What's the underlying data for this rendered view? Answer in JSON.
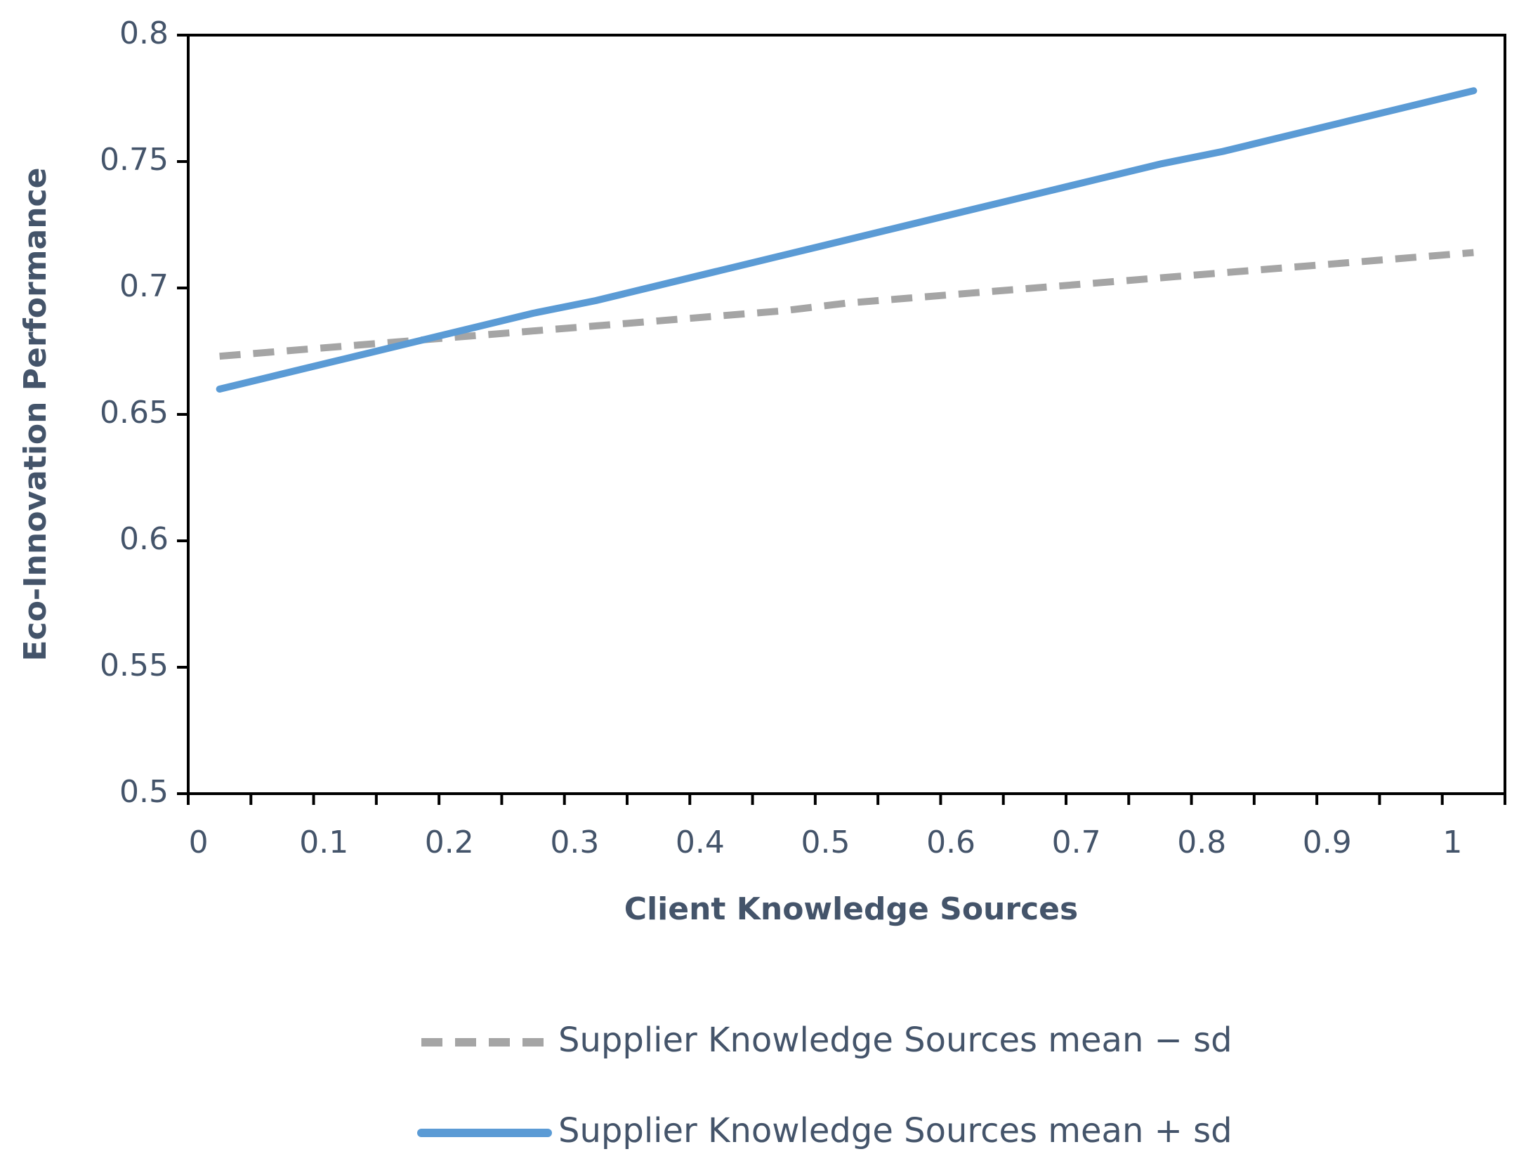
{
  "chart_data": {
    "type": "line",
    "x_label": "Client Knowledge Sources",
    "y_label": "Eco-Innovation Performance",
    "categories": [
      "0",
      null,
      "0.1",
      null,
      "0.2",
      null,
      "0.3",
      null,
      "0.4",
      null,
      "0.5",
      null,
      "0.6",
      null,
      "0.7",
      null,
      "0.8",
      null,
      "0.9",
      null,
      "1"
    ],
    "series": [
      {
        "name": "Supplier Knowledge Sources mean − sd",
        "color": "#a5a5a5",
        "dashed": true,
        "values": [
          0.673,
          0.675,
          0.677,
          0.679,
          0.681,
          0.683,
          0.685,
          0.687,
          0.689,
          0.691,
          0.694,
          0.696,
          0.698,
          0.7,
          0.702,
          0.704,
          0.706,
          0.708,
          0.71,
          0.712,
          0.714
        ]
      },
      {
        "name": "Supplier Knowledge Sources mean + sd",
        "color": "#5b9bd5",
        "dashed": false,
        "values": [
          0.66,
          0.666,
          0.672,
          0.678,
          0.684,
          0.69,
          0.695,
          0.701,
          0.707,
          0.713,
          0.719,
          0.725,
          0.731,
          0.737,
          0.743,
          0.749,
          0.754,
          0.76,
          0.766,
          0.772,
          0.778
        ]
      }
    ],
    "ylim": [
      0.5,
      0.8
    ],
    "yticks": [
      0.5,
      0.55,
      0.6,
      0.65,
      0.7,
      0.75,
      0.8
    ],
    "grid": false,
    "legend": "bottom"
  }
}
